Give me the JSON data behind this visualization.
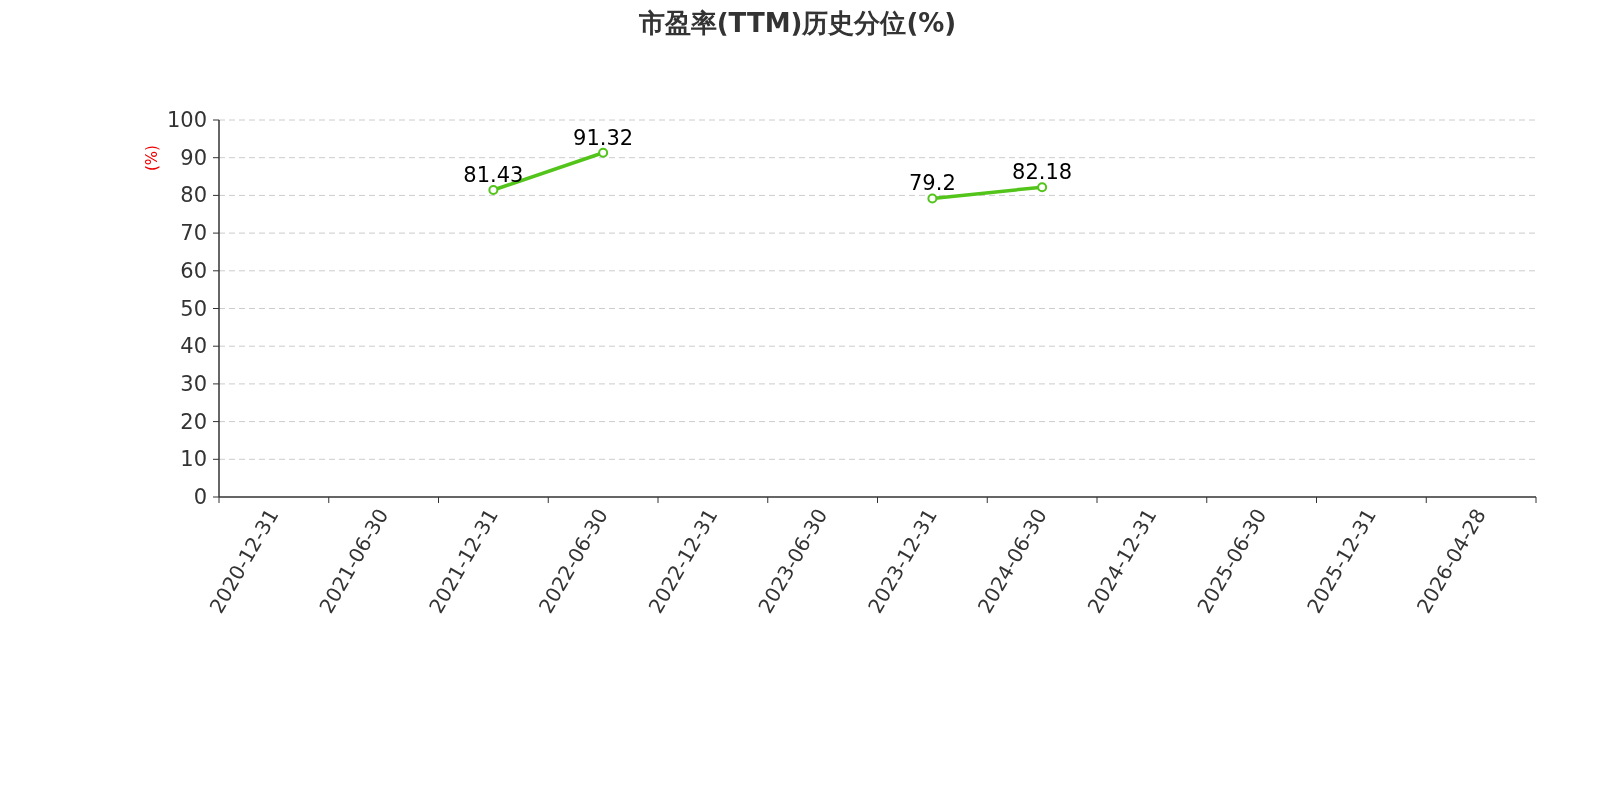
{
  "chart_data": {
    "type": "line",
    "title": "市盈率(TTM)历史分位(%)",
    "ylabel": "(%)",
    "categories": [
      "2020-12-31",
      "2021-06-30",
      "2021-12-31",
      "2022-06-30",
      "2022-12-31",
      "2023-06-30",
      "2023-12-31",
      "2024-06-30",
      "2024-12-31",
      "2025-06-30",
      "2025-12-31",
      "2026-04-28"
    ],
    "series": [
      {
        "color": "#52c41a",
        "values": [
          null,
          null,
          81.43,
          91.32,
          null,
          null,
          79.2,
          82.18,
          null,
          null,
          null,
          null
        ]
      }
    ],
    "ylim": [
      0,
      100
    ],
    "yticks": [
      0,
      10,
      20,
      30,
      40,
      50,
      60,
      70,
      80,
      90,
      100
    ],
    "grid": "y",
    "marker": "circle",
    "line_style": "solid",
    "data_labels": true
  }
}
